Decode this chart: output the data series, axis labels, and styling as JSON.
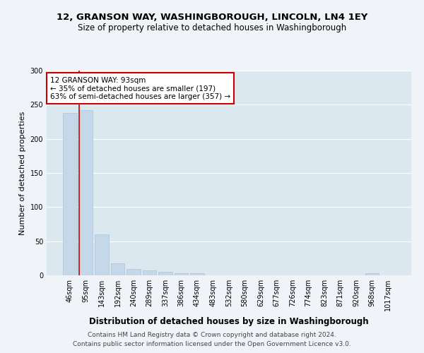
{
  "title": "12, GRANSON WAY, WASHINGBOROUGH, LINCOLN, LN4 1EY",
  "subtitle": "Size of property relative to detached houses in Washingborough",
  "xlabel": "Distribution of detached houses by size in Washingborough",
  "ylabel": "Number of detached properties",
  "categories": [
    "46sqm",
    "95sqm",
    "143sqm",
    "192sqm",
    "240sqm",
    "289sqm",
    "337sqm",
    "386sqm",
    "434sqm",
    "483sqm",
    "532sqm",
    "580sqm",
    "629sqm",
    "677sqm",
    "726sqm",
    "774sqm",
    "823sqm",
    "871sqm",
    "920sqm",
    "968sqm",
    "1017sqm"
  ],
  "values": [
    238,
    242,
    60,
    18,
    9,
    7,
    5,
    3,
    3,
    0,
    0,
    0,
    0,
    0,
    0,
    0,
    0,
    0,
    0,
    3,
    0
  ],
  "bar_color": "#c5d8ea",
  "bar_edge_color": "#a8c4d8",
  "vline_x_index": 1,
  "vline_color": "#cc0000",
  "annotation_text": "12 GRANSON WAY: 93sqm\n← 35% of detached houses are smaller (197)\n63% of semi-detached houses are larger (357) →",
  "annotation_box_color": "#ffffff",
  "annotation_border_color": "#cc0000",
  "ylim": [
    0,
    300
  ],
  "yticks": [
    0,
    50,
    100,
    150,
    200,
    250,
    300
  ],
  "plot_bg_color": "#dce8f0",
  "fig_bg_color": "#f0f4f8",
  "footer1": "Contains HM Land Registry data © Crown copyright and database right 2024.",
  "footer2": "Contains public sector information licensed under the Open Government Licence v3.0.",
  "title_fontsize": 9.5,
  "subtitle_fontsize": 8.5,
  "xlabel_fontsize": 8.5,
  "ylabel_fontsize": 8,
  "tick_fontsize": 7,
  "annotation_fontsize": 7.5,
  "footer_fontsize": 6.5
}
